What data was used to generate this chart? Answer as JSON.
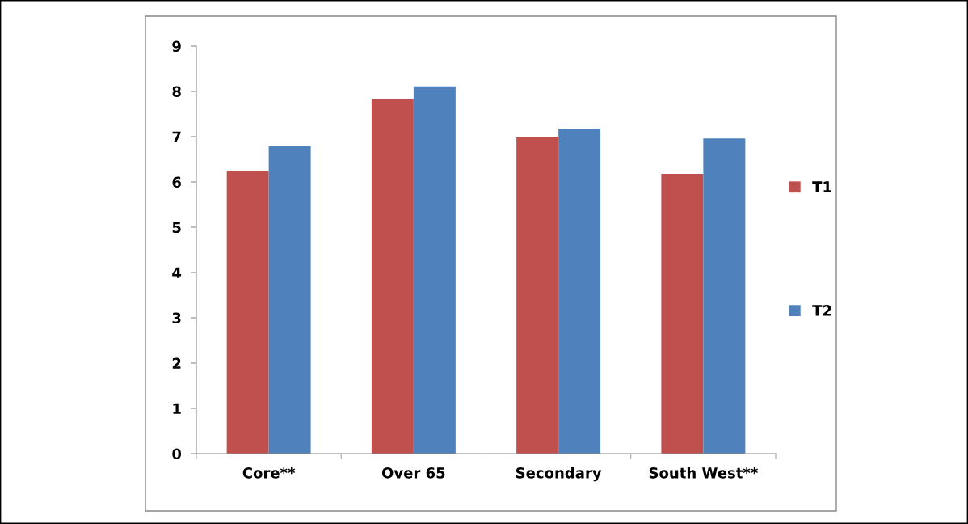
{
  "chart_data": {
    "type": "bar",
    "categories": [
      "Core**",
      "Over 65",
      "Secondary",
      "South West**"
    ],
    "series": [
      {
        "name": "T1",
        "color": "#c0504d",
        "values": [
          6.25,
          7.82,
          7.0,
          6.18
        ]
      },
      {
        "name": "T2",
        "color": "#4f81bd",
        "values": [
          6.79,
          8.11,
          7.18,
          6.96
        ]
      }
    ],
    "ylim": [
      0,
      9
    ],
    "yticks": [
      0,
      1,
      2,
      3,
      4,
      5,
      6,
      7,
      8,
      9
    ],
    "grid": false,
    "legend": "right"
  }
}
